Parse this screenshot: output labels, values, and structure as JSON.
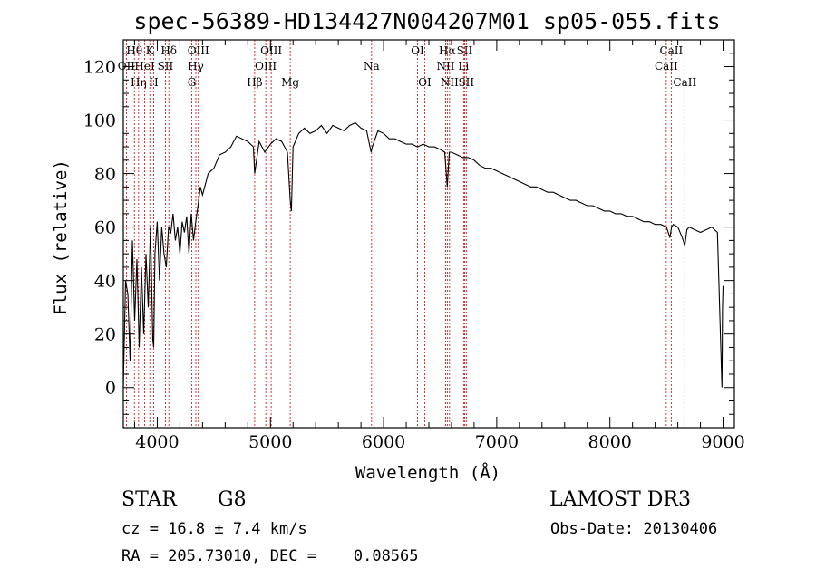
{
  "chart_data": {
    "type": "line",
    "title": "spec-56389-HD134427N004207M01_sp05-055.fits",
    "xlabel": "Wavelength (Å)",
    "ylabel": "Flux (relative)",
    "xlim": [
      3700,
      9100
    ],
    "ylim": [
      -15,
      130
    ],
    "x_ticks": [
      4000,
      5000,
      6000,
      7000,
      8000,
      9000
    ],
    "y_ticks": [
      0,
      20,
      40,
      60,
      80,
      100,
      120
    ],
    "series": [
      {
        "name": "spectrum",
        "color": "#000000",
        "x": [
          3700,
          3720,
          3740,
          3760,
          3780,
          3800,
          3820,
          3840,
          3860,
          3880,
          3900,
          3920,
          3940,
          3960,
          3968,
          3980,
          4000,
          4020,
          4040,
          4060,
          4080,
          4100,
          4120,
          4140,
          4160,
          4180,
          4200,
          4220,
          4240,
          4260,
          4280,
          4300,
          4320,
          4340,
          4360,
          4380,
          4400,
          4450,
          4500,
          4550,
          4600,
          4650,
          4700,
          4750,
          4800,
          4850,
          4861,
          4900,
          4950,
          5000,
          5050,
          5100,
          5150,
          5175,
          5185,
          5200,
          5250,
          5300,
          5350,
          5400,
          5450,
          5500,
          5550,
          5600,
          5650,
          5700,
          5750,
          5800,
          5850,
          5890,
          5900,
          5950,
          6000,
          6050,
          6100,
          6150,
          6200,
          6250,
          6300,
          6350,
          6400,
          6450,
          6500,
          6540,
          6563,
          6580,
          6600,
          6650,
          6700,
          6750,
          6800,
          6850,
          6900,
          6950,
          7000,
          7050,
          7100,
          7150,
          7200,
          7250,
          7300,
          7350,
          7400,
          7450,
          7500,
          7550,
          7600,
          7650,
          7700,
          7750,
          7800,
          7850,
          7900,
          7950,
          8000,
          8050,
          8100,
          8150,
          8200,
          8250,
          8300,
          8350,
          8400,
          8450,
          8500,
          8530,
          8545,
          8560,
          8600,
          8640,
          8662,
          8680,
          8700,
          8750,
          8800,
          8850,
          8900,
          8950,
          8990,
          8995,
          9000
        ],
        "values": [
          0,
          40,
          35,
          10,
          55,
          25,
          48,
          15,
          45,
          20,
          50,
          30,
          60,
          18,
          15,
          50,
          62,
          40,
          60,
          50,
          45,
          60,
          58,
          65,
          55,
          60,
          50,
          62,
          58,
          64,
          50,
          65,
          55,
          62,
          68,
          75,
          72,
          80,
          82,
          87,
          88,
          90,
          94,
          93,
          92,
          90,
          80,
          92,
          88,
          91,
          93,
          92,
          88,
          70,
          66,
          90,
          95,
          97,
          95,
          96,
          98,
          95,
          98,
          97,
          96,
          98,
          99,
          97,
          96,
          88,
          90,
          96,
          95,
          93,
          93,
          92,
          91,
          91,
          90,
          91,
          90,
          90,
          89,
          88,
          75,
          88,
          88,
          87,
          86,
          86,
          85,
          83,
          82,
          82,
          81,
          80,
          79,
          78,
          77,
          76,
          75,
          75,
          74,
          73,
          73,
          72,
          71,
          70,
          70,
          69,
          68,
          68,
          67,
          66,
          66,
          65,
          65,
          64,
          64,
          63,
          62,
          62,
          61,
          61,
          60,
          56,
          60,
          61,
          60,
          56,
          53,
          59,
          60,
          59,
          58,
          59,
          60,
          58,
          0,
          30,
          38
        ]
      }
    ],
    "spectral_lines": [
      {
        "name": "OII",
        "wavelength": 3727,
        "row": 1
      },
      {
        "name": "Hθ",
        "wavelength": 3798,
        "row": 0
      },
      {
        "name": "Hη",
        "wavelength": 3835,
        "row": 2
      },
      {
        "name": "HeI",
        "wavelength": 3889,
        "row": 1
      },
      {
        "name": "K",
        "wavelength": 3934,
        "row": 0
      },
      {
        "name": "H",
        "wavelength": 3968,
        "row": 2
      },
      {
        "name": "SII",
        "wavelength": 4072,
        "row": 1
      },
      {
        "name": "Hδ",
        "wavelength": 4102,
        "row": 0
      },
      {
        "name": "G",
        "wavelength": 4305,
        "row": 2
      },
      {
        "name": "Hγ",
        "wavelength": 4341,
        "row": 1
      },
      {
        "name": "OIII",
        "wavelength": 4363,
        "row": 0
      },
      {
        "name": "Hβ",
        "wavelength": 4861,
        "row": 2
      },
      {
        "name": "OIII",
        "wavelength": 4959,
        "row": 1
      },
      {
        "name": "OIII",
        "wavelength": 5007,
        "row": 0
      },
      {
        "name": "Mg",
        "wavelength": 5175,
        "row": 2
      },
      {
        "name": "Na",
        "wavelength": 5894,
        "row": 1
      },
      {
        "name": "OI",
        "wavelength": 6300,
        "row": 0
      },
      {
        "name": "OI",
        "wavelength": 6364,
        "row": 2
      },
      {
        "name": "NII",
        "wavelength": 6548,
        "row": 1
      },
      {
        "name": "Hα",
        "wavelength": 6563,
        "row": 0
      },
      {
        "name": "NII",
        "wavelength": 6583,
        "row": 2
      },
      {
        "name": "Li",
        "wavelength": 6707,
        "row": 1
      },
      {
        "name": "SII",
        "wavelength": 6716,
        "row": 0
      },
      {
        "name": "SII",
        "wavelength": 6731,
        "row": 2
      },
      {
        "name": "CaII",
        "wavelength": 8498,
        "row": 1
      },
      {
        "name": "CaII",
        "wavelength": 8542,
        "row": 0
      },
      {
        "name": "CaII",
        "wavelength": 8662,
        "row": 2
      }
    ],
    "line_color": "#cc0000"
  },
  "info": {
    "object_class": "STAR",
    "subclass": "G8",
    "survey": "LAMOST DR3",
    "cz": "cz = 16.8 ± 7.4 km/s",
    "obs_date": "Obs-Date: 20130406",
    "coords": "RA = 205.73010, DEC =    0.08565"
  }
}
